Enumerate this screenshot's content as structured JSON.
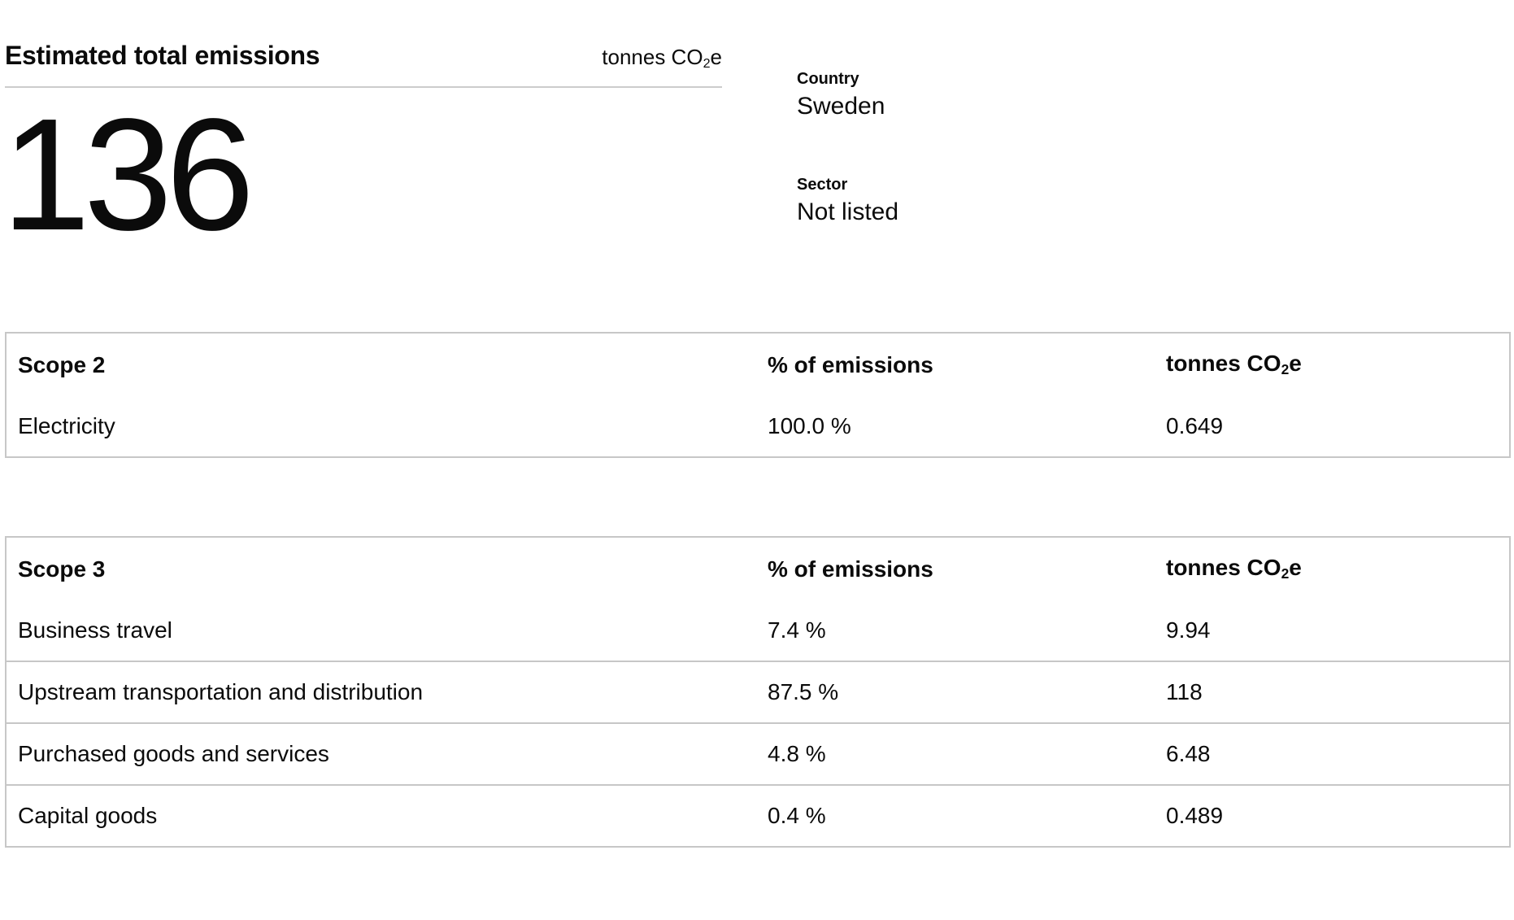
{
  "summary": {
    "title": "Estimated total emissions",
    "unit": {
      "prefix": "tonnes CO",
      "sub": "2",
      "suffix": "e"
    },
    "total_value": "136"
  },
  "meta": {
    "country_label": "Country",
    "country_value": "Sweden",
    "sector_label": "Sector",
    "sector_value": "Not listed"
  },
  "tables": [
    {
      "title": "Scope 2",
      "col_percent": "% of emissions",
      "col_unit": {
        "prefix": "tonnes CO",
        "sub": "2",
        "suffix": "e"
      },
      "rows": [
        {
          "label": "Electricity",
          "percent": "100.0 %",
          "tonnes": "0.649"
        }
      ]
    },
    {
      "title": "Scope 3",
      "col_percent": "% of emissions",
      "col_unit": {
        "prefix": "tonnes CO",
        "sub": "2",
        "suffix": "e"
      },
      "rows": [
        {
          "label": "Business travel",
          "percent": "7.4 %",
          "tonnes": "9.94"
        },
        {
          "label": "Upstream transportation and distribution",
          "percent": "87.5 %",
          "tonnes": "118"
        },
        {
          "label": "Purchased goods and services",
          "percent": "4.8 %",
          "tonnes": "6.48"
        },
        {
          "label": "Capital goods",
          "percent": "0.4 %",
          "tonnes": "0.489"
        }
      ]
    }
  ],
  "colors": {
    "text": "#0b0b0b",
    "table_border": "#c7c7c7",
    "title_divider": "#cccccc",
    "background": "#ffffff"
  }
}
